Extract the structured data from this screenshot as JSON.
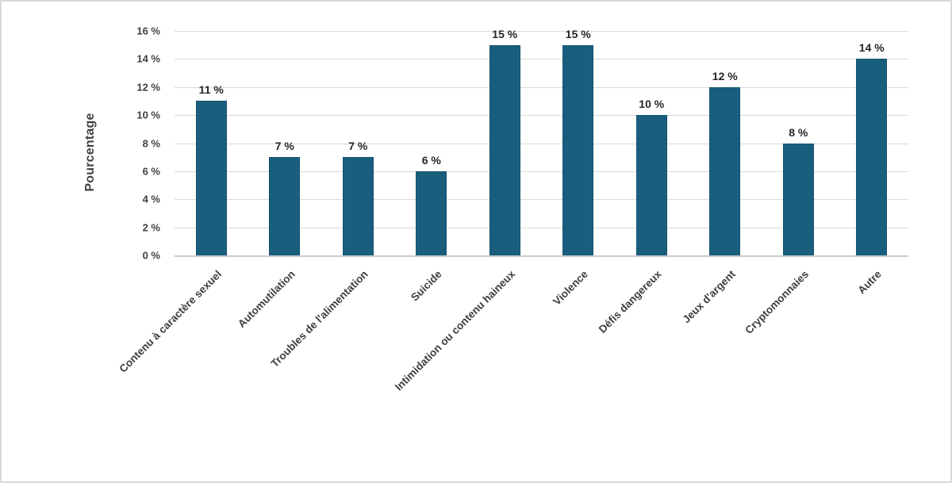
{
  "chart_data": {
    "type": "bar",
    "title": "",
    "xlabel": "",
    "ylabel": "Pourcentage",
    "ylim": [
      0,
      16
    ],
    "ytick_step": 2,
    "yticks": [
      "0 %",
      "2 %",
      "4 %",
      "6 %",
      "8 %",
      "10 %",
      "12 %",
      "14 %",
      "16 %"
    ],
    "categories": [
      "Contenu à caractère sexuel",
      "Automutilation",
      "Troubles de l'alimentation",
      "Suicide",
      "Intimidation ou contenu haineux",
      "Violence",
      "Défis dangereux",
      "Jeux d'argent",
      "Cryptomonnaies",
      "Autre"
    ],
    "values": [
      11,
      7,
      7,
      6,
      15,
      15,
      10,
      12,
      8,
      14
    ],
    "bar_labels": [
      "11 %",
      "7 %",
      "7 %",
      "6 %",
      "15 %",
      "15 %",
      "10 %",
      "12 %",
      "8 %",
      "14 %"
    ],
    "grid": true,
    "legend": false,
    "colors": {
      "bar_fill": "#1A5E7E",
      "bar_border": "#14536E",
      "gridline": "#D9D9D9",
      "axis_line": "#C9C9C9",
      "tick_text": "#3F3F3F",
      "data_label_text": "#262626",
      "background": "#FFFFFF",
      "frame_border": "#D8D8D8"
    }
  }
}
